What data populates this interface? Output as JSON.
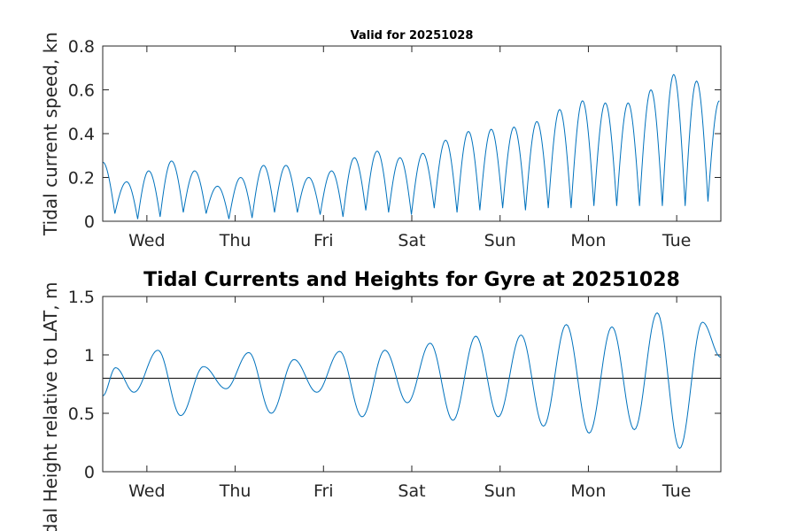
{
  "chart_data": [
    {
      "type": "line",
      "title": "Valid for 20251028",
      "ylabel": "Tidal current speed, kn",
      "xlabel": "",
      "x_tick_labels": [
        "Wed",
        "Thu",
        "Fri",
        "Sat",
        "Sun",
        "Mon",
        "Tue"
      ],
      "x_tick_hours": [
        12,
        36,
        60,
        84,
        108,
        132,
        156
      ],
      "xlim": [
        0,
        168
      ],
      "ylim": [
        0,
        0.8
      ],
      "y_ticks": [
        0,
        0.2,
        0.4,
        0.6,
        0.8
      ],
      "y_tick_labels": [
        "0",
        "0.2",
        "0.4",
        "0.6",
        "0.8"
      ],
      "series": [
        {
          "name": "Tidal current speed",
          "peak_hours": [
            0,
            6.5,
            12.5,
            18.7,
            25,
            31.2,
            37.5,
            43.7,
            49.8,
            56,
            62.2,
            68.4,
            74.6,
            80.8,
            87,
            93.2,
            99.4,
            105.6,
            111.8,
            118,
            124.2,
            130.4,
            136.6,
            142.8,
            149,
            155.2,
            161.4,
            167.6
          ],
          "peak_values": [
            0.27,
            0.18,
            0.23,
            0.275,
            0.23,
            0.16,
            0.2,
            0.255,
            0.255,
            0.2,
            0.23,
            0.29,
            0.32,
            0.29,
            0.31,
            0.37,
            0.41,
            0.42,
            0.43,
            0.455,
            0.51,
            0.55,
            0.54,
            0.54,
            0.6,
            0.67,
            0.64,
            0.55
          ],
          "trough_hours": [
            3.3,
            9.5,
            15.6,
            21.9,
            28.1,
            34.3,
            40.6,
            46.7,
            52.9,
            59.1,
            65.3,
            71.5,
            77.7,
            83.9,
            90.1,
            96.3,
            102.5,
            108.7,
            114.9,
            121.1,
            127.3,
            133.5,
            139.7,
            145.9,
            152.1,
            158.3,
            164.5
          ],
          "trough_values": [
            0.035,
            0.01,
            0.02,
            0.04,
            0.035,
            0.01,
            0.015,
            0.04,
            0.04,
            0.03,
            0.02,
            0.05,
            0.04,
            0.03,
            0.06,
            0.04,
            0.05,
            0.06,
            0.05,
            0.06,
            0.06,
            0.07,
            0.07,
            0.07,
            0.07,
            0.07,
            0.09
          ]
        }
      ]
    },
    {
      "type": "line",
      "title": "Tidal Currents and Heights for Gyre at 20251028",
      "ylabel": "Tidal Height relative to LAT, m",
      "xlabel": "",
      "x_tick_labels": [
        "Wed",
        "Thu",
        "Fri",
        "Sat",
        "Sun",
        "Mon",
        "Tue"
      ],
      "x_tick_hours": [
        12,
        36,
        60,
        84,
        108,
        132,
        156
      ],
      "xlim": [
        0,
        168
      ],
      "ylim": [
        0,
        1.5
      ],
      "y_ticks": [
        0,
        0.5,
        1,
        1.5
      ],
      "y_tick_labels": [
        "0",
        "0.5",
        "1",
        "1.5"
      ],
      "reference_level": 0.8,
      "series": [
        {
          "name": "Tidal height",
          "extrema_hours": [
            0,
            3.5,
            8.5,
            15,
            21.2,
            27.4,
            33.5,
            39.7,
            45.8,
            52,
            58.2,
            64.4,
            70.5,
            76.7,
            82.8,
            89,
            95.2,
            101.4,
            107.5,
            113.7,
            119.8,
            126,
            132.2,
            138.4,
            144.5,
            150.7,
            156.8,
            163,
            168
          ],
          "extrema_values": [
            0.65,
            0.89,
            0.68,
            1.04,
            0.48,
            0.9,
            0.71,
            1.02,
            0.5,
            0.96,
            0.68,
            1.03,
            0.47,
            1.04,
            0.59,
            1.1,
            0.44,
            1.16,
            0.47,
            1.17,
            0.39,
            1.26,
            0.33,
            1.24,
            0.36,
            1.36,
            0.2,
            1.28,
            0.98
          ]
        }
      ]
    }
  ]
}
